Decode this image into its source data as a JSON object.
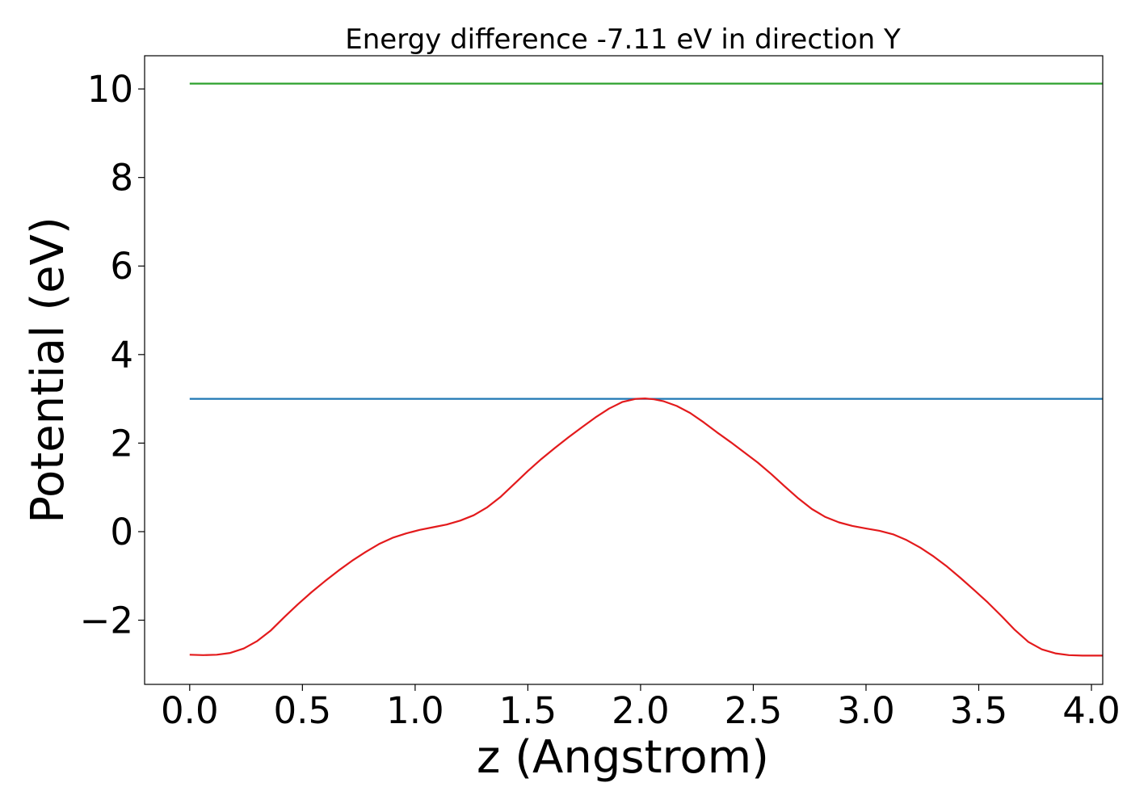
{
  "chart_data": {
    "type": "line",
    "title": "Energy difference -7.11 eV in direction Y",
    "xlabel": "z (Angstrom)",
    "ylabel": "Potential (eV)",
    "xlim": [
      -0.2,
      4.05
    ],
    "ylim": [
      -3.45,
      10.75
    ],
    "xticks": [
      0.0,
      0.5,
      1.0,
      1.5,
      2.0,
      2.5,
      3.0,
      3.5,
      4.0
    ],
    "xtick_labels": [
      "0.0",
      "0.5",
      "1.0",
      "1.5",
      "2.0",
      "2.5",
      "3.0",
      "3.5",
      "4.0"
    ],
    "yticks": [
      -2,
      0,
      2,
      4,
      6,
      8,
      10
    ],
    "ytick_labels": [
      "−2",
      "0",
      "2",
      "4",
      "6",
      "8",
      "10"
    ],
    "grid": false,
    "series": [
      {
        "color": "#2ca02c",
        "x": [
          0.0,
          4.05
        ],
        "y": [
          10.12,
          10.12
        ]
      },
      {
        "color": "#1f77b4",
        "x": [
          0.0,
          4.05
        ],
        "y": [
          3.0,
          3.0
        ]
      },
      {
        "color": "#e31a1c",
        "x": [
          0.0,
          0.06,
          0.12,
          0.18,
          0.24,
          0.3,
          0.36,
          0.42,
          0.48,
          0.54,
          0.6,
          0.66,
          0.72,
          0.78,
          0.84,
          0.9,
          0.96,
          1.02,
          1.08,
          1.14,
          1.2,
          1.26,
          1.32,
          1.38,
          1.44,
          1.5,
          1.56,
          1.62,
          1.68,
          1.74,
          1.8,
          1.86,
          1.92,
          1.98,
          2.02,
          2.06,
          2.1,
          2.16,
          2.22,
          2.28,
          2.34,
          2.4,
          2.46,
          2.52,
          2.58,
          2.64,
          2.7,
          2.76,
          2.82,
          2.88,
          2.94,
          3.0,
          3.06,
          3.12,
          3.18,
          3.24,
          3.3,
          3.36,
          3.42,
          3.48,
          3.54,
          3.6,
          3.66,
          3.72,
          3.78,
          3.84,
          3.9,
          3.96,
          4.02,
          4.05
        ],
        "y": [
          -2.78,
          -2.79,
          -2.78,
          -2.74,
          -2.64,
          -2.47,
          -2.23,
          -1.93,
          -1.64,
          -1.37,
          -1.12,
          -0.88,
          -0.66,
          -0.46,
          -0.28,
          -0.14,
          -0.04,
          0.04,
          0.1,
          0.16,
          0.25,
          0.37,
          0.55,
          0.79,
          1.08,
          1.37,
          1.64,
          1.89,
          2.13,
          2.36,
          2.58,
          2.78,
          2.93,
          3.0,
          3.01,
          2.99,
          2.95,
          2.84,
          2.68,
          2.47,
          2.24,
          2.02,
          1.79,
          1.56,
          1.3,
          1.02,
          0.75,
          0.51,
          0.33,
          0.21,
          0.13,
          0.07,
          0.02,
          -0.06,
          -0.19,
          -0.36,
          -0.56,
          -0.79,
          -1.05,
          -1.32,
          -1.6,
          -1.9,
          -2.22,
          -2.49,
          -2.66,
          -2.75,
          -2.79,
          -2.8,
          -2.8,
          -2.8
        ]
      }
    ]
  }
}
